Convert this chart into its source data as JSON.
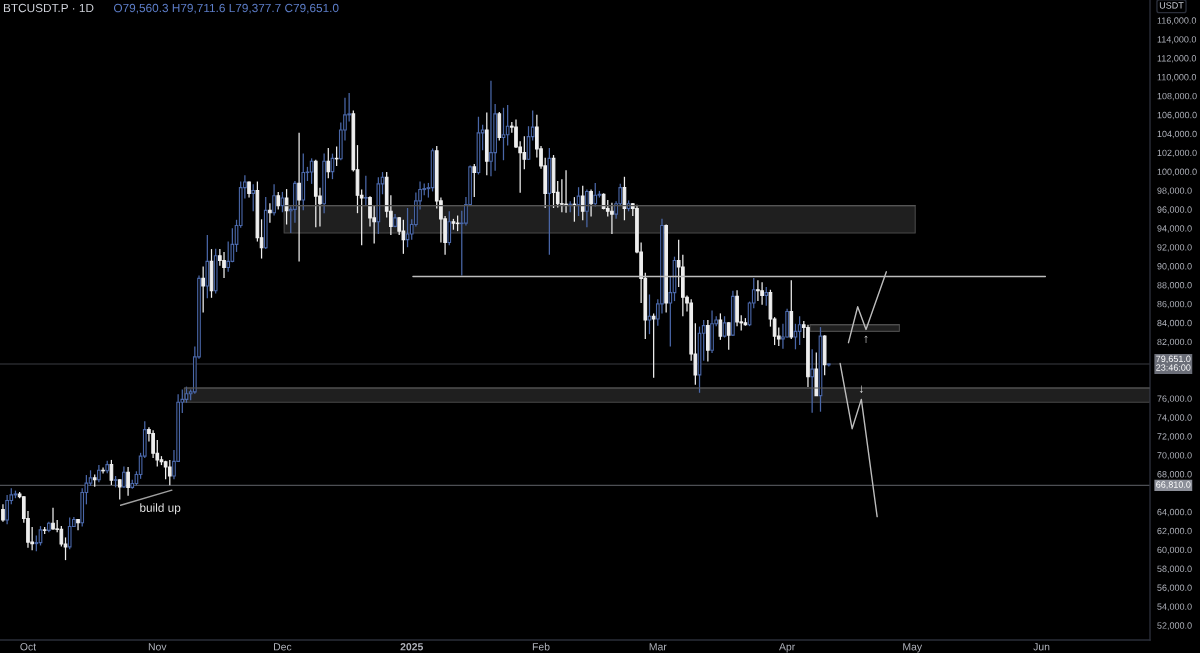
{
  "chart_data": {
    "type": "candlestick",
    "title": "BTCUSDT.P · 1D",
    "subtitle": "O79,560.3 H79,711.6 L79,377.7 C79,651.0",
    "ylabel": "USDT",
    "x": [
      "2024-09-25",
      "2024-09-26",
      "2024-09-27",
      "2024-09-28",
      "2024-09-29",
      "2024-09-30",
      "2024-10-01",
      "2024-10-02",
      "2024-10-03",
      "2024-10-04",
      "2024-10-05",
      "2024-10-06",
      "2024-10-07",
      "2024-10-08",
      "2024-10-09",
      "2024-10-10",
      "2024-10-11",
      "2024-10-12",
      "2024-10-13",
      "2024-10-14",
      "2024-10-15",
      "2024-10-16",
      "2024-10-17",
      "2024-10-18",
      "2024-10-19",
      "2024-10-20",
      "2024-10-21",
      "2024-10-22",
      "2024-10-23",
      "2024-10-24",
      "2024-10-25",
      "2024-10-26",
      "2024-10-27",
      "2024-10-28",
      "2024-10-29",
      "2024-10-30",
      "2024-10-31",
      "2024-11-01",
      "2024-11-02",
      "2024-11-03",
      "2024-11-04",
      "2024-11-05",
      "2024-11-06",
      "2024-11-07",
      "2024-11-08",
      "2024-11-09",
      "2024-11-10",
      "2024-11-11",
      "2024-11-12",
      "2024-11-13",
      "2024-11-14",
      "2024-11-15",
      "2024-11-16",
      "2024-11-17",
      "2024-11-18",
      "2024-11-19",
      "2024-11-20",
      "2024-11-21",
      "2024-11-22",
      "2024-11-23",
      "2024-11-24",
      "2024-11-25",
      "2024-11-26",
      "2024-11-27",
      "2024-11-28",
      "2024-11-29",
      "2024-11-30",
      "2024-12-01",
      "2024-12-02",
      "2024-12-03",
      "2024-12-04",
      "2024-12-05",
      "2024-12-06",
      "2024-12-07",
      "2024-12-08",
      "2024-12-09",
      "2024-12-10",
      "2024-12-11",
      "2024-12-12",
      "2024-12-13",
      "2024-12-14",
      "2024-12-15",
      "2024-12-16",
      "2024-12-17",
      "2024-12-18",
      "2024-12-19",
      "2024-12-20",
      "2024-12-21",
      "2024-12-22",
      "2024-12-23",
      "2024-12-24",
      "2024-12-25",
      "2024-12-26",
      "2024-12-27",
      "2024-12-28",
      "2024-12-29",
      "2024-12-30",
      "2024-12-31",
      "2025-01-01",
      "2025-01-02",
      "2025-01-03",
      "2025-01-04",
      "2025-01-05",
      "2025-01-06",
      "2025-01-07",
      "2025-01-08",
      "2025-01-09",
      "2025-01-10",
      "2025-01-11",
      "2025-01-12",
      "2025-01-13",
      "2025-01-14",
      "2025-01-15",
      "2025-01-16",
      "2025-01-17",
      "2025-01-18",
      "2025-01-19",
      "2025-01-20",
      "2025-01-21",
      "2025-01-22",
      "2025-01-23",
      "2025-01-24",
      "2025-01-25",
      "2025-01-26",
      "2025-01-27",
      "2025-01-28",
      "2025-01-29",
      "2025-01-30",
      "2025-01-31",
      "2025-02-01",
      "2025-02-02",
      "2025-02-03",
      "2025-02-04",
      "2025-02-05",
      "2025-02-06",
      "2025-02-07",
      "2025-02-08",
      "2025-02-09",
      "2025-02-10",
      "2025-02-11",
      "2025-02-12",
      "2025-02-13",
      "2025-02-14",
      "2025-02-15",
      "2025-02-16",
      "2025-02-17",
      "2025-02-18",
      "2025-02-19",
      "2025-02-20",
      "2025-02-21",
      "2025-02-22",
      "2025-02-23",
      "2025-02-24",
      "2025-02-25",
      "2025-02-26",
      "2025-02-27",
      "2025-02-28",
      "2025-03-01",
      "2025-03-02",
      "2025-03-03",
      "2025-03-04",
      "2025-03-05",
      "2025-03-06",
      "2025-03-07",
      "2025-03-08",
      "2025-03-09",
      "2025-03-10",
      "2025-03-11",
      "2025-03-12",
      "2025-03-13",
      "2025-03-14",
      "2025-03-15",
      "2025-03-16",
      "2025-03-17",
      "2025-03-18",
      "2025-03-19",
      "2025-03-20",
      "2025-03-21",
      "2025-03-22",
      "2025-03-23",
      "2025-03-24",
      "2025-03-25",
      "2025-03-26",
      "2025-03-27",
      "2025-03-28",
      "2025-03-29",
      "2025-03-30",
      "2025-03-31",
      "2025-04-01",
      "2025-04-02",
      "2025-04-03",
      "2025-04-04",
      "2025-04-05",
      "2025-04-06",
      "2025-04-07",
      "2025-04-08",
      "2025-04-09",
      "2025-04-10",
      "2025-04-11"
    ],
    "ohlc": [
      [
        64250,
        64800,
        62950,
        63150
      ],
      [
        63150,
        65800,
        62700,
        65200
      ],
      [
        65200,
        66500,
        64800,
        65800
      ],
      [
        65800,
        66250,
        65450,
        65900
      ],
      [
        65900,
        66100,
        65450,
        65600
      ],
      [
        65600,
        65650,
        62850,
        63300
      ],
      [
        63300,
        64100,
        60200,
        60800
      ],
      [
        60800,
        62400,
        59950,
        60650
      ],
      [
        60650,
        61500,
        59850,
        60750
      ],
      [
        60750,
        62500,
        60450,
        62100
      ],
      [
        62100,
        62400,
        61650,
        62050
      ],
      [
        62050,
        62950,
        61850,
        62800
      ],
      [
        62800,
        64450,
        62100,
        62200
      ],
      [
        62200,
        63150,
        61850,
        62150
      ],
      [
        62150,
        62500,
        60350,
        60600
      ],
      [
        60600,
        61300,
        58900,
        60300
      ],
      [
        60300,
        63400,
        60050,
        62450
      ],
      [
        62450,
        63450,
        62400,
        63200
      ],
      [
        63200,
        63250,
        62050,
        62850
      ],
      [
        62850,
        66500,
        62450,
        66050
      ],
      [
        66050,
        67900,
        64800,
        67050
      ],
      [
        67050,
        68400,
        66750,
        67600
      ],
      [
        67600,
        67950,
        66650,
        67400
      ],
      [
        67400,
        68950,
        67150,
        68400
      ],
      [
        68400,
        68700,
        68050,
        68350
      ],
      [
        68350,
        69400,
        68100,
        69000
      ],
      [
        69000,
        69500,
        66850,
        67350
      ],
      [
        67350,
        67800,
        66600,
        67400
      ],
      [
        67400,
        67450,
        65300,
        66650
      ],
      [
        66650,
        68800,
        66550,
        68200
      ],
      [
        68200,
        68750,
        65700,
        66600
      ],
      [
        66600,
        67400,
        66450,
        67000
      ],
      [
        67000,
        68300,
        66800,
        67950
      ],
      [
        67950,
        70250,
        67500,
        69900
      ],
      [
        69900,
        73600,
        69700,
        72700
      ],
      [
        72700,
        72950,
        71450,
        72300
      ],
      [
        72300,
        72650,
        69700,
        70200
      ],
      [
        70200,
        71600,
        68800,
        69500
      ],
      [
        69500,
        69900,
        68950,
        69300
      ],
      [
        69300,
        69400,
        67450,
        68750
      ],
      [
        68750,
        69500,
        66810,
        67800
      ],
      [
        67800,
        70550,
        67450,
        69350
      ],
      [
        69350,
        76450,
        69300,
        75600
      ],
      [
        75600,
        76950,
        74450,
        75900
      ],
      [
        75900,
        77250,
        75550,
        76500
      ],
      [
        76500,
        76950,
        75800,
        76700
      ],
      [
        76700,
        81500,
        76500,
        80400
      ],
      [
        80400,
        89000,
        80200,
        88700
      ],
      [
        88700,
        89950,
        85100,
        87900
      ],
      [
        87900,
        93300,
        86600,
        90500
      ],
      [
        90500,
        91800,
        86650,
        87400
      ],
      [
        87400,
        91850,
        87100,
        91100
      ],
      [
        91100,
        91800,
        90050,
        90600
      ],
      [
        90600,
        91500,
        88750,
        89850
      ],
      [
        89850,
        92600,
        89400,
        90500
      ],
      [
        90500,
        94000,
        90400,
        92300
      ],
      [
        92300,
        94900,
        91500,
        94300
      ],
      [
        94300,
        98950,
        94050,
        98300
      ],
      [
        98300,
        99600,
        97150,
        98900
      ],
      [
        98900,
        98950,
        97250,
        97700
      ],
      [
        97700,
        98650,
        95800,
        98000
      ],
      [
        98000,
        98950,
        92600,
        93000
      ],
      [
        93000,
        94950,
        90800,
        91950
      ],
      [
        91950,
        97300,
        91800,
        95900
      ],
      [
        95900,
        96650,
        94600,
        95650
      ],
      [
        95650,
        98650,
        95350,
        97450
      ],
      [
        97450,
        97850,
        96000,
        96400
      ],
      [
        96400,
        97850,
        95700,
        97200
      ],
      [
        97200,
        98150,
        94400,
        95850
      ],
      [
        95850,
        96300,
        93500,
        96000
      ],
      [
        96000,
        99000,
        94600,
        98750
      ],
      [
        98750,
        104100,
        90500,
        97000
      ],
      [
        97000,
        101900,
        95900,
        99900
      ],
      [
        99900,
        100500,
        99000,
        99950
      ],
      [
        99950,
        101400,
        98700,
        101100
      ],
      [
        101100,
        101250,
        94100,
        97400
      ],
      [
        97400,
        98300,
        94200,
        96600
      ],
      [
        96600,
        101900,
        95600,
        101100
      ],
      [
        101100,
        102500,
        99300,
        100000
      ],
      [
        100000,
        101900,
        99200,
        101400
      ],
      [
        101400,
        102650,
        100600,
        101350
      ],
      [
        101350,
        105200,
        101200,
        104400
      ],
      [
        104400,
        107800,
        103300,
        106000
      ],
      [
        106000,
        108300,
        105300,
        106100
      ],
      [
        106100,
        106450,
        100000,
        100200
      ],
      [
        100200,
        102800,
        95600,
        97500
      ],
      [
        97500,
        98100,
        92200,
        97200
      ],
      [
        97200,
        99550,
        96400,
        97250
      ],
      [
        97250,
        97400,
        94200,
        95100
      ],
      [
        95100,
        96400,
        92400,
        94700
      ],
      [
        94700,
        99400,
        93400,
        98700
      ],
      [
        98700,
        99950,
        97600,
        99400
      ],
      [
        99400,
        99950,
        95150,
        95800
      ],
      [
        95800,
        97500,
        93300,
        94200
      ],
      [
        94200,
        95500,
        94100,
        95100
      ],
      [
        95100,
        95200,
        93300,
        93700
      ],
      [
        93700,
        94900,
        91300,
        92800
      ],
      [
        92800,
        96150,
        92000,
        93400
      ],
      [
        93400,
        94950,
        92800,
        94400
      ],
      [
        94400,
        97800,
        94200,
        96900
      ],
      [
        96900,
        98950,
        96000,
        98100
      ],
      [
        98100,
        98750,
        97500,
        98200
      ],
      [
        98200,
        98800,
        97250,
        98300
      ],
      [
        98300,
        102450,
        97900,
        102200
      ],
      [
        102200,
        102700,
        96100,
        96900
      ],
      [
        96900,
        97250,
        92500,
        95000
      ],
      [
        95000,
        95300,
        91200,
        92500
      ],
      [
        92500,
        95800,
        92200,
        94700
      ],
      [
        94700,
        95000,
        93850,
        94550
      ],
      [
        94550,
        95350,
        93700,
        94500
      ],
      [
        94500,
        95850,
        89000,
        94550
      ],
      [
        94550,
        97300,
        94300,
        96500
      ],
      [
        96500,
        100650,
        96400,
        100500
      ],
      [
        100500,
        100800,
        97300,
        99900
      ],
      [
        99900,
        105800,
        99700,
        104100
      ],
      [
        104100,
        104950,
        102250,
        104400
      ],
      [
        104400,
        106250,
        99600,
        101100
      ],
      [
        101100,
        109600,
        99500,
        102000
      ],
      [
        102000,
        107150,
        100100,
        106100
      ],
      [
        106100,
        106300,
        103300,
        103600
      ],
      [
        103600,
        106750,
        101200,
        103900
      ],
      [
        103900,
        107050,
        102750,
        104800
      ],
      [
        104800,
        105250,
        104100,
        104700
      ],
      [
        104700,
        105500,
        102500,
        102600
      ],
      [
        102600,
        103200,
        97750,
        102000
      ],
      [
        102000,
        103750,
        100250,
        101300
      ],
      [
        101300,
        104800,
        101250,
        103700
      ],
      [
        103700,
        106450,
        103300,
        104700
      ],
      [
        104700,
        106000,
        101500,
        102400
      ],
      [
        102400,
        102700,
        100300,
        100600
      ],
      [
        100600,
        101450,
        96150,
        97700
      ],
      [
        97700,
        102500,
        91200,
        101400
      ],
      [
        101400,
        101750,
        96150,
        97800
      ],
      [
        97800,
        99000,
        96200,
        96600
      ],
      [
        96600,
        99200,
        95700,
        96550
      ],
      [
        96550,
        100150,
        95650,
        96500
      ],
      [
        96500,
        96850,
        95700,
        96550
      ],
      [
        96550,
        97300,
        94700,
        96500
      ],
      [
        96500,
        98350,
        95300,
        97400
      ],
      [
        97400,
        98500,
        94850,
        95800
      ],
      [
        95800,
        98100,
        94100,
        97900
      ],
      [
        97900,
        98100,
        95250,
        96600
      ],
      [
        96600,
        98800,
        96300,
        97500
      ],
      [
        97500,
        97950,
        97250,
        97600
      ],
      [
        97600,
        97700,
        96000,
        96100
      ],
      [
        96100,
        97000,
        95250,
        95800
      ],
      [
        95800,
        96700,
        93400,
        95500
      ],
      [
        95500,
        96850,
        95000,
        96600
      ],
      [
        96600,
        98700,
        96400,
        98300
      ],
      [
        98300,
        99450,
        94850,
        96100
      ],
      [
        96100,
        96950,
        95800,
        96600
      ],
      [
        96600,
        96650,
        95300,
        96100
      ],
      [
        96100,
        96500,
        91350,
        91500
      ],
      [
        91500,
        92500,
        86100,
        88700
      ],
      [
        88700,
        89300,
        82300,
        84300
      ],
      [
        84300,
        87000,
        82800,
        84700
      ],
      [
        84700,
        85000,
        78200,
        84400
      ],
      [
        84400,
        86500,
        83700,
        86000
      ],
      [
        86000,
        95000,
        85000,
        94300
      ],
      [
        94300,
        94400,
        85100,
        86100
      ],
      [
        86100,
        88900,
        81500,
        87200
      ],
      [
        87200,
        91000,
        86300,
        90600
      ],
      [
        90600,
        92800,
        87800,
        89900
      ],
      [
        89900,
        91200,
        84700,
        86700
      ],
      [
        86700,
        86900,
        85200,
        86100
      ],
      [
        86100,
        86500,
        80000,
        80700
      ],
      [
        80700,
        83950,
        77450,
        78500
      ],
      [
        78500,
        83600,
        76600,
        82900
      ],
      [
        82900,
        84300,
        80000,
        83700
      ],
      [
        83700,
        84300,
        79900,
        81100
      ],
      [
        81100,
        85300,
        80800,
        83900
      ],
      [
        83900,
        84700,
        83650,
        84300
      ],
      [
        84300,
        85000,
        82200,
        82600
      ],
      [
        82600,
        84700,
        82450,
        84000
      ],
      [
        84000,
        84050,
        81150,
        82700
      ],
      [
        82700,
        87400,
        82600,
        86800
      ],
      [
        86800,
        87450,
        83650,
        84100
      ],
      [
        84100,
        84800,
        83200,
        84000
      ],
      [
        84000,
        84500,
        83700,
        83800
      ],
      [
        83800,
        86250,
        83650,
        86100
      ],
      [
        86100,
        88750,
        85550,
        87500
      ],
      [
        87500,
        88500,
        86300,
        87400
      ],
      [
        87400,
        88300,
        85900,
        86900
      ],
      [
        86900,
        87800,
        85800,
        87200
      ],
      [
        87200,
        87500,
        83600,
        84400
      ],
      [
        84400,
        84600,
        81650,
        82600
      ],
      [
        82600,
        83500,
        81550,
        82300
      ],
      [
        82300,
        83900,
        81250,
        82500
      ],
      [
        82500,
        85500,
        82450,
        85200
      ],
      [
        85200,
        88500,
        82300,
        82500
      ],
      [
        82500,
        83900,
        81200,
        83100
      ],
      [
        83100,
        84700,
        81650,
        83800
      ],
      [
        83800,
        84200,
        82400,
        83500
      ],
      [
        83500,
        83800,
        77200,
        78300
      ],
      [
        78300,
        81200,
        74500,
        79100
      ],
      [
        79100,
        80850,
        76250,
        76300
      ],
      [
        76300,
        83550,
        74600,
        82600
      ],
      [
        82600,
        82700,
        78450,
        79560.3
      ],
      [
        79560.3,
        79711.6,
        79377.7,
        79651.0
      ]
    ],
    "colors": [
      "#eeeeee",
      "#4a67a8",
      "#4a67a8",
      "#4a67a8",
      "#eeeeee",
      "#eeeeee",
      "#eeeeee",
      "#eeeeee",
      "#4a67a8",
      "#4a67a8",
      "#eeeeee",
      "#4a67a8",
      "#eeeeee",
      "#eeeeee",
      "#eeeeee",
      "#eeeeee",
      "#4a67a8",
      "#4a67a8",
      "#eeeeee",
      "#4a67a8",
      "#4a67a8",
      "#4a67a8",
      "#eeeeee",
      "#4a67a8",
      "#eeeeee",
      "#4a67a8",
      "#eeeeee",
      "#4a67a8",
      "#eeeeee",
      "#4a67a8",
      "#eeeeee",
      "#4a67a8",
      "#4a67a8",
      "#4a67a8",
      "#4a67a8",
      "#eeeeee",
      "#eeeeee",
      "#eeeeee",
      "#eeeeee",
      "#eeeeee",
      "#eeeeee",
      "#4a67a8",
      "#4a67a8",
      "#4a67a8",
      "#4a67a8",
      "#4a67a8",
      "#4a67a8",
      "#4a67a8",
      "#eeeeee",
      "#4a67a8",
      "#eeeeee",
      "#4a67a8",
      "#eeeeee",
      "#eeeeee",
      "#4a67a8",
      "#4a67a8",
      "#4a67a8",
      "#4a67a8",
      "#4a67a8",
      "#eeeeee",
      "#4a67a8",
      "#eeeeee",
      "#eeeeee",
      "#4a67a8",
      "#eeeeee",
      "#4a67a8",
      "#eeeeee",
      "#4a67a8",
      "#eeeeee",
      "#4a67a8",
      "#4a67a8",
      "#eeeeee",
      "#4a67a8",
      "#4a67a8",
      "#4a67a8",
      "#eeeeee",
      "#eeeeee",
      "#4a67a8",
      "#eeeeee",
      "#4a67a8",
      "#eeeeee",
      "#4a67a8",
      "#4a67a8",
      "#4a67a8",
      "#eeeeee",
      "#eeeeee",
      "#eeeeee",
      "#4a67a8",
      "#eeeeee",
      "#eeeeee",
      "#4a67a8",
      "#4a67a8",
      "#eeeeee",
      "#eeeeee",
      "#4a67a8",
      "#eeeeee",
      "#eeeeee",
      "#4a67a8",
      "#4a67a8",
      "#4a67a8",
      "#4a67a8",
      "#4a67a8",
      "#4a67a8",
      "#4a67a8",
      "#eeeeee",
      "#eeeeee",
      "#eeeeee",
      "#4a67a8",
      "#eeeeee",
      "#eeeeee",
      "#4a67a8",
      "#4a67a8",
      "#4a67a8",
      "#eeeeee",
      "#4a67a8",
      "#4a67a8",
      "#eeeeee",
      "#4a67a8",
      "#4a67a8",
      "#eeeeee",
      "#4a67a8",
      "#4a67a8",
      "#eeeeee",
      "#eeeeee",
      "#eeeeee",
      "#eeeeee",
      "#4a67a8",
      "#4a67a8",
      "#eeeeee",
      "#eeeeee",
      "#eeeeee",
      "#4a67a8",
      "#eeeeee",
      "#eeeeee",
      "#eeeeee",
      "#eeeeee",
      "#4a67a8",
      "#eeeeee",
      "#4a67a8",
      "#eeeeee",
      "#4a67a8",
      "#eeeeee",
      "#4a67a8",
      "#4a67a8",
      "#eeeeee",
      "#eeeeee",
      "#eeeeee",
      "#4a67a8",
      "#4a67a8",
      "#eeeeee",
      "#4a67a8",
      "#eeeeee",
      "#eeeeee",
      "#eeeeee",
      "#eeeeee",
      "#4a67a8",
      "#eeeeee",
      "#4a67a8",
      "#4a67a8",
      "#eeeeee",
      "#4a67a8",
      "#4a67a8",
      "#eeeeee",
      "#eeeeee",
      "#eeeeee",
      "#eeeeee",
      "#eeeeee",
      "#4a67a8",
      "#4a67a8",
      "#eeeeee",
      "#4a67a8",
      "#4a67a8",
      "#eeeeee",
      "#4a67a8",
      "#eeeeee",
      "#4a67a8",
      "#eeeeee",
      "#eeeeee",
      "#eeeeee",
      "#4a67a8",
      "#4a67a8",
      "#eeeeee",
      "#eeeeee",
      "#4a67a8",
      "#eeeeee",
      "#eeeeee",
      "#eeeeee",
      "#4a67a8",
      "#4a67a8",
      "#eeeeee",
      "#4a67a8",
      "#4a67a8",
      "#eeeeee",
      "#eeeeee",
      "#4a67a8",
      "#eeeeee",
      "#4a67a8",
      "#eeeeee",
      "#4a67a8"
    ],
    "series": [
      {
        "type": "line",
        "x": [
          "2024-12-01T10:00",
          "2025-05-01T17:00"
        ],
        "values": [
          96400,
          96400
        ],
        "lower": [
          93500,
          93500
        ],
        "upper": [
          96400,
          96400
        ],
        "color": "#555555"
      },
      {
        "type": "line",
        "x": [
          "2024-11-07T12:00",
          "2025-06-27"
        ],
        "values": [
          77100,
          77100
        ],
        "lower": [
          75600,
          75600
        ],
        "upper": [
          77100,
          77100
        ],
        "color": "#555555"
      },
      {
        "type": "line",
        "x": [
          "2025-04-06T12:00",
          "2025-04-27T22:00"
        ],
        "values": [
          83800,
          83800
        ],
        "lower": [
          83100,
          83100
        ],
        "upper": [
          83800,
          83800
        ],
        "color": "#555555"
      },
      {
        "type": "line",
        "x": [
          "2025-01-01T07:00",
          "2025-06-01T22:00"
        ],
        "values": [
          88900,
          88900
        ],
        "color": "#bdbdbd"
      },
      {
        "type": "line",
        "name": "build up",
        "x": [
          "2024-10-23T05:00",
          "2024-11-04T12:00"
        ],
        "values": [
          64700,
          66300
        ],
        "color": "#a0a0a0"
      },
      {
        "type": "line",
        "x": [
          "2025-04-15T17:00",
          "2025-04-17T22:00",
          "2025-04-19T22:00",
          "2025-04-24T19:00"
        ],
        "values": [
          81900,
          85700,
          83300,
          89400
        ],
        "color": "#bdbdbd"
      },
      {
        "type": "line",
        "x": [
          "2025-04-13T17:00",
          "2025-04-16T14:00",
          "2025-04-18T19:00",
          "2025-04-22T14:00"
        ],
        "values": [
          79700,
          72800,
          75900,
          63500
        ],
        "color": "#bdbdbd"
      }
    ],
    "ref_lines": [
      {
        "axis": "y",
        "value": 79651,
        "label": "79,651.0\n23:46:00",
        "color": "#6b6e78"
      },
      {
        "axis": "y",
        "value": 66810,
        "label": "66,810.0",
        "color": "#8c8f99"
      }
    ],
    "annotations": [
      {
        "text": "↑",
        "x": "2025-04-19T22:00",
        "y": 83300
      },
      {
        "text": "↓",
        "x": "2025-04-18T19:00",
        "y": 75900
      }
    ],
    "xlim": [
      "2024-09-24T07:00",
      "2025-06-27"
    ],
    "ylim": [
      50450,
      118150
    ],
    "xticks": [
      {
        "value": "2024-10-01",
        "label": "Oct"
      },
      {
        "value": "2024-11-01",
        "label": "Nov"
      },
      {
        "value": "2024-12-01",
        "label": "Dec"
      },
      {
        "value": "2025-01-01",
        "label": "2025"
      },
      {
        "value": "2025-02-01",
        "label": "Feb"
      },
      {
        "value": "2025-03-01",
        "label": "Mar"
      },
      {
        "value": "2025-04-01",
        "label": "Apr"
      },
      {
        "value": "2025-05-01",
        "label": "May"
      },
      {
        "value": "2025-06-01",
        "label": "Jun"
      }
    ],
    "yticks": [
      {
        "value": 52000,
        "label": "52,000.0"
      },
      {
        "value": 54000,
        "label": "54,000.0"
      },
      {
        "value": 56000,
        "label": "56,000.0"
      },
      {
        "value": 58000,
        "label": "58,000.0"
      },
      {
        "value": 60000,
        "label": "60,000.0"
      },
      {
        "value": 62000,
        "label": "62,000.0"
      },
      {
        "value": 64000,
        "label": "64,000.0"
      },
      {
        "value": 68000,
        "label": "68,000.0"
      },
      {
        "value": 70000,
        "label": "70,000.0"
      },
      {
        "value": 72000,
        "label": "72,000.0"
      },
      {
        "value": 74000,
        "label": "74,000.0"
      },
      {
        "value": 76000,
        "label": "76,000.0"
      },
      {
        "value": 82000,
        "label": "82,000.0"
      },
      {
        "value": 84000,
        "label": "84,000.0"
      },
      {
        "value": 86000,
        "label": "86,000.0"
      },
      {
        "value": 88000,
        "label": "88,000.0"
      },
      {
        "value": 90000,
        "label": "90,000.0"
      },
      {
        "value": 92000,
        "label": "92,000.0"
      },
      {
        "value": 94000,
        "label": "94,000.0"
      },
      {
        "value": 96000,
        "label": "96,000.0"
      },
      {
        "value": 98000,
        "label": "98,000.0"
      },
      {
        "value": 100000,
        "label": "100,000.0"
      },
      {
        "value": 102000,
        "label": "102,000.0"
      },
      {
        "value": 104000,
        "label": "104,000.0"
      },
      {
        "value": 106000,
        "label": "106,000.0"
      },
      {
        "value": 108000,
        "label": "108,000.0"
      },
      {
        "value": 110000,
        "label": "110,000.0"
      },
      {
        "value": 112000,
        "label": "112,000.0"
      },
      {
        "value": 114000,
        "label": "114,000.0"
      },
      {
        "value": 116000,
        "label": "116,000.0"
      }
    ]
  }
}
